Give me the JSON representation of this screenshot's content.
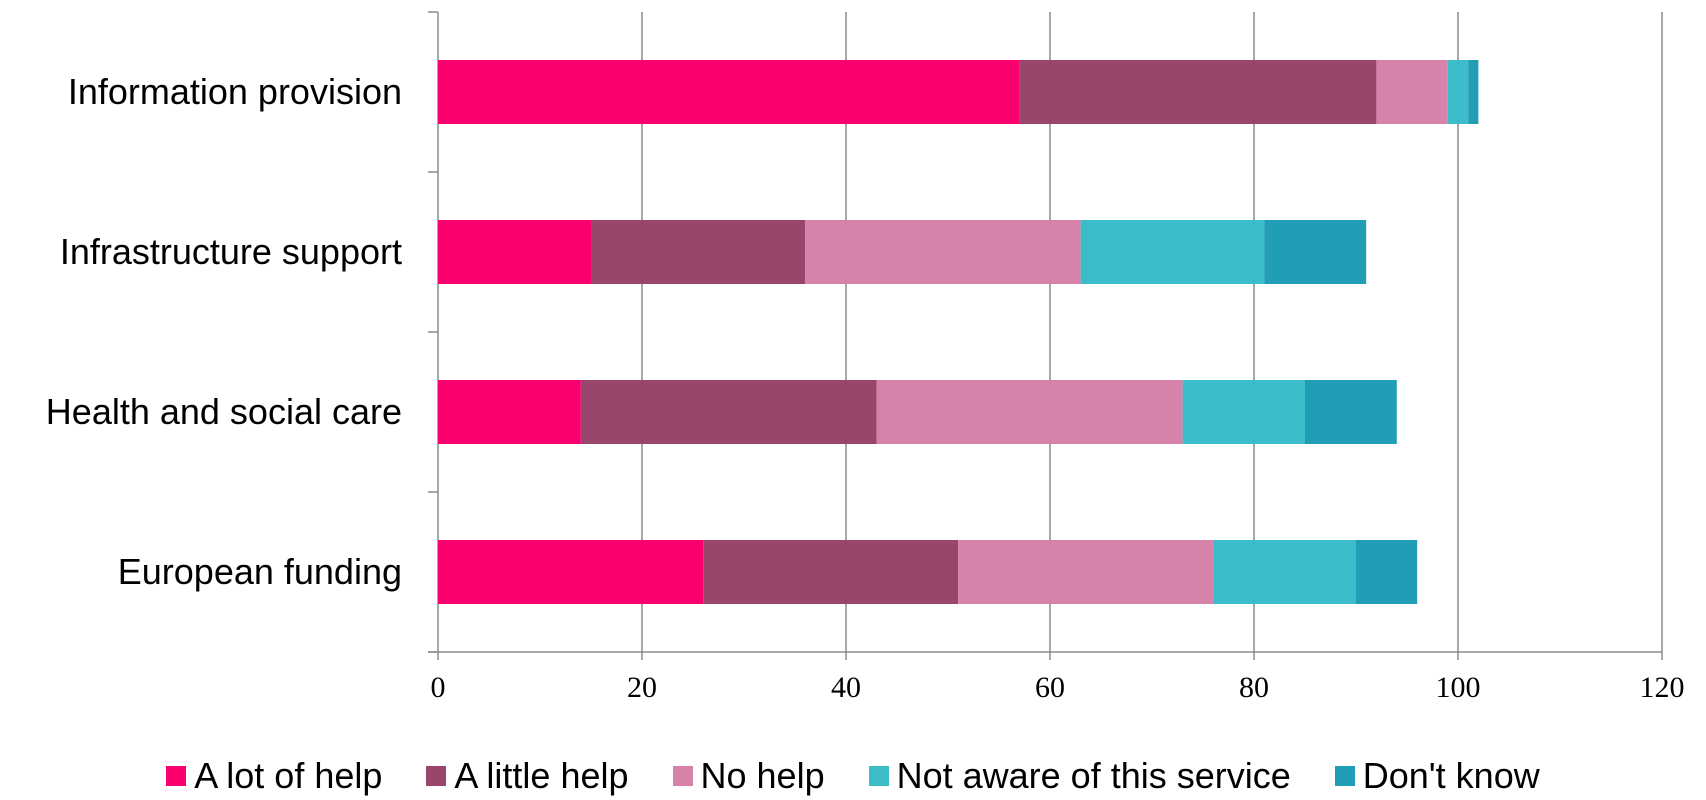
{
  "chart_data": {
    "type": "bar",
    "orientation": "horizontal",
    "stacked": true,
    "categories": [
      "Information provision",
      "Infrastructure support",
      "Health and social care",
      "European funding"
    ],
    "series": [
      {
        "name": "A lot of help",
        "color": "#fa006e",
        "values": [
          57,
          15,
          14,
          26
        ]
      },
      {
        "name": "A little help",
        "color": "#99466d",
        "values": [
          35,
          21,
          29,
          25
        ]
      },
      {
        "name": "No help",
        "color": "#d782aa",
        "values": [
          7,
          27,
          30,
          25
        ]
      },
      {
        "name": "Not aware of this service",
        "color": "#3bbdc9",
        "values": [
          2,
          18,
          12,
          14
        ]
      },
      {
        "name": "Don't know",
        "color": "#219db6",
        "values": [
          1,
          10,
          9,
          6
        ]
      }
    ],
    "xlim": [
      0,
      120
    ],
    "xticks": [
      "0",
      "20",
      "40",
      "60",
      "80",
      "100",
      "120"
    ],
    "title": "",
    "xlabel": "",
    "ylabel": "",
    "grid": "vertical",
    "legend_position": "bottom"
  }
}
